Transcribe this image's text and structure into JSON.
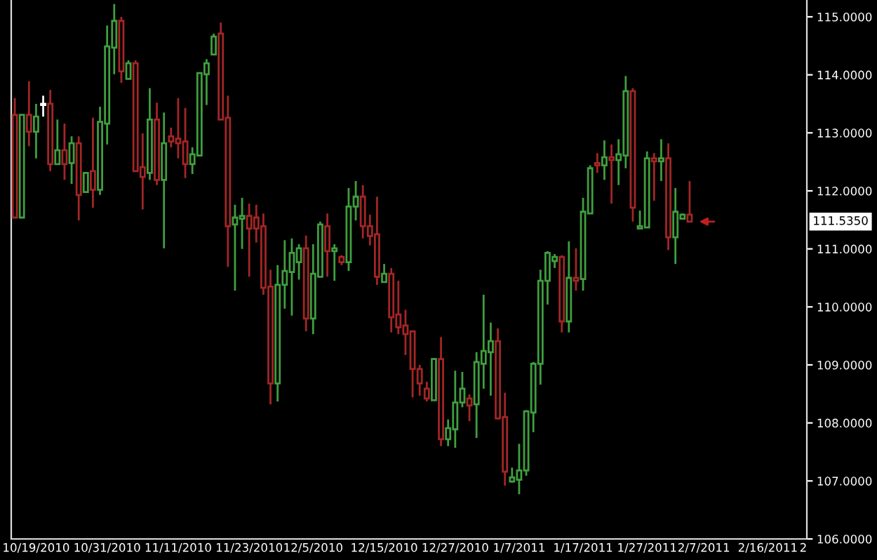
{
  "chart_data": {
    "type": "candlestick",
    "categories": [
      null,
      null,
      null,
      "10/19/2010",
      null,
      null,
      null,
      null,
      null,
      null,
      null,
      null,
      null,
      "10/31/2010",
      null,
      null,
      null,
      null,
      null,
      null,
      null,
      null,
      null,
      "11/11/2010",
      null,
      null,
      null,
      null,
      null,
      null,
      null,
      null,
      null,
      "11/23/2010",
      null,
      null,
      null,
      null,
      null,
      null,
      null,
      null,
      "12/5/2010",
      null,
      null,
      null,
      null,
      null,
      null,
      null,
      null,
      null,
      "12/15/2010",
      null,
      null,
      null,
      null,
      null,
      null,
      null,
      null,
      null,
      "12/27/2010",
      null,
      null,
      null,
      null,
      null,
      null,
      null,
      null,
      "1/7/2011",
      null,
      null,
      null,
      null,
      null,
      null,
      null,
      null,
      "1/17/2011",
      null,
      null,
      null,
      null,
      null,
      null,
      null,
      null,
      "1/27/2011",
      null,
      null,
      null,
      null,
      null,
      null,
      null,
      "2/7/2011",
      null,
      null,
      null,
      null,
      null,
      null,
      null,
      null,
      "2/16/2011",
      null,
      null,
      null,
      null,
      "2"
    ],
    "ohlc": [
      [
        113.31,
        113.6,
        111.54,
        111.54
      ],
      [
        111.54,
        113.31,
        111.54,
        113.31
      ],
      [
        113.31,
        113.89,
        112.77,
        113.02
      ],
      [
        113.02,
        113.5,
        112.56,
        113.28
      ],
      [
        113.48,
        113.64,
        113.28,
        113.48
      ],
      [
        113.5,
        113.74,
        112.34,
        112.46
      ],
      [
        112.46,
        113.23,
        112.46,
        112.7
      ],
      [
        112.7,
        113.16,
        112.19,
        112.46
      ],
      [
        112.48,
        112.94,
        112.12,
        112.82
      ],
      [
        112.82,
        112.94,
        111.49,
        111.93
      ],
      [
        111.98,
        112.31,
        111.98,
        112.31
      ],
      [
        112.34,
        113.26,
        111.71,
        112.02
      ],
      [
        112.02,
        113.45,
        111.93,
        113.19
      ],
      [
        113.16,
        114.85,
        112.8,
        114.49
      ],
      [
        114.47,
        115.22,
        114.01,
        114.93
      ],
      [
        114.93,
        115.0,
        113.86,
        114.06
      ],
      [
        113.93,
        114.25,
        113.93,
        114.2
      ],
      [
        114.2,
        114.25,
        112.34,
        112.34
      ],
      [
        112.41,
        112.99,
        111.68,
        112.24
      ],
      [
        112.31,
        113.77,
        112.19,
        113.23
      ],
      [
        113.23,
        113.52,
        112.1,
        112.19
      ],
      [
        112.19,
        113.35,
        111.01,
        112.82
      ],
      [
        112.94,
        113.09,
        112.75,
        112.85
      ],
      [
        112.9,
        113.6,
        112.56,
        112.82
      ],
      [
        112.85,
        113.43,
        112.22,
        112.46
      ],
      [
        112.46,
        112.75,
        112.29,
        112.63
      ],
      [
        112.61,
        114.03,
        112.61,
        114.03
      ],
      [
        114.01,
        114.27,
        113.48,
        114.2
      ],
      [
        114.35,
        114.71,
        114.35,
        114.66
      ],
      [
        114.71,
        114.9,
        113.23,
        113.23
      ],
      [
        113.26,
        113.64,
        110.69,
        111.39
      ],
      [
        111.42,
        111.76,
        110.28,
        111.54
      ],
      [
        111.52,
        111.88,
        111.0,
        111.57
      ],
      [
        111.57,
        111.78,
        110.52,
        111.35
      ],
      [
        111.54,
        111.76,
        111.11,
        111.35
      ],
      [
        111.39,
        111.61,
        110.21,
        110.33
      ],
      [
        110.35,
        110.64,
        108.32,
        108.68
      ],
      [
        108.68,
        110.72,
        108.37,
        110.38
      ],
      [
        110.38,
        111.15,
        109.97,
        110.62
      ],
      [
        110.6,
        111.18,
        109.85,
        110.93
      ],
      [
        110.77,
        111.08,
        110.47,
        111.01
      ],
      [
        111.01,
        111.23,
        109.58,
        109.8
      ],
      [
        109.8,
        111.08,
        109.53,
        110.57
      ],
      [
        110.52,
        111.47,
        110.52,
        111.42
      ],
      [
        111.39,
        111.61,
        110.52,
        110.96
      ],
      [
        110.96,
        111.08,
        110.45,
        111.01
      ],
      [
        110.86,
        110.89,
        110.72,
        110.77
      ],
      [
        110.77,
        112.05,
        110.62,
        111.73
      ],
      [
        111.73,
        112.17,
        111.49,
        111.9
      ],
      [
        111.9,
        112.1,
        111.18,
        111.39
      ],
      [
        111.39,
        111.59,
        111.06,
        111.22
      ],
      [
        111.25,
        111.9,
        110.38,
        110.52
      ],
      [
        110.43,
        110.74,
        110.43,
        110.57
      ],
      [
        110.57,
        110.67,
        109.56,
        109.82
      ],
      [
        109.87,
        110.45,
        109.53,
        109.65
      ],
      [
        109.68,
        109.95,
        109.17,
        109.53
      ],
      [
        109.58,
        109.58,
        108.44,
        108.93
      ],
      [
        108.93,
        109.0,
        108.47,
        108.68
      ],
      [
        108.59,
        108.71,
        108.37,
        108.42
      ],
      [
        108.39,
        109.12,
        108.39,
        109.1
      ],
      [
        109.1,
        109.48,
        107.6,
        107.72
      ],
      [
        107.72,
        108.06,
        107.6,
        107.91
      ],
      [
        107.89,
        108.9,
        107.57,
        108.35
      ],
      [
        108.35,
        108.88,
        108.27,
        108.59
      ],
      [
        108.42,
        108.49,
        108.03,
        108.3
      ],
      [
        108.32,
        109.22,
        107.74,
        109.05
      ],
      [
        109.02,
        110.21,
        108.59,
        109.24
      ],
      [
        109.22,
        109.73,
        108.47,
        109.41
      ],
      [
        109.41,
        109.63,
        108.06,
        108.08
      ],
      [
        108.1,
        108.52,
        106.92,
        107.16
      ],
      [
        106.99,
        107.23,
        106.97,
        107.06
      ],
      [
        107.02,
        107.64,
        106.77,
        107.18
      ],
      [
        107.18,
        108.22,
        107.09,
        108.2
      ],
      [
        108.18,
        109.05,
        107.84,
        109.02
      ],
      [
        109.02,
        110.64,
        108.66,
        110.45
      ],
      [
        110.45,
        110.96,
        110.04,
        110.93
      ],
      [
        110.79,
        110.91,
        110.67,
        110.86
      ],
      [
        110.86,
        110.89,
        109.56,
        109.75
      ],
      [
        109.75,
        111.13,
        109.56,
        110.5
      ],
      [
        110.5,
        111.01,
        110.28,
        110.45
      ],
      [
        110.48,
        111.88,
        110.28,
        111.64
      ],
      [
        111.61,
        112.44,
        111.61,
        112.39
      ],
      [
        112.48,
        112.65,
        112.31,
        112.44
      ],
      [
        112.44,
        112.87,
        112.19,
        112.58
      ],
      [
        112.58,
        112.8,
        111.78,
        112.53
      ],
      [
        112.53,
        112.89,
        112.1,
        112.63
      ],
      [
        112.61,
        113.98,
        112.39,
        113.72
      ],
      [
        113.72,
        113.77,
        111.47,
        111.71
      ],
      [
        111.35,
        111.66,
        111.35,
        111.39
      ],
      [
        111.37,
        112.68,
        111.37,
        112.56
      ],
      [
        112.56,
        112.65,
        111.83,
        112.51
      ],
      [
        112.51,
        112.89,
        112.17,
        112.56
      ],
      [
        112.56,
        112.82,
        110.98,
        111.2
      ],
      [
        111.2,
        112.05,
        110.74,
        111.64
      ],
      [
        111.52,
        111.61,
        111.52,
        111.59
      ],
      [
        111.59,
        112.17,
        111.47,
        111.47
      ],
      null,
      null,
      null,
      null,
      null,
      null,
      null,
      null,
      null,
      null,
      null,
      null,
      null,
      null,
      null,
      null
    ],
    "colors": [
      "#a32626",
      "#3f9f3f",
      "#a32626",
      "#3f9f3f",
      "#ffffff",
      "#a32626",
      "#3f9f3f",
      "#a32626",
      "#3f9f3f",
      "#a32626",
      "#3f9f3f",
      "#a32626",
      "#3f9f3f",
      "#3f9f3f",
      "#3f9f3f",
      "#a32626",
      "#3f9f3f",
      "#a32626",
      "#a32626",
      "#3f9f3f",
      "#a32626",
      "#3f9f3f",
      "#a32626",
      "#a32626",
      "#a32626",
      "#3f9f3f",
      "#3f9f3f",
      "#3f9f3f",
      "#3f9f3f",
      "#a32626",
      "#a32626",
      "#3f9f3f",
      "#3f9f3f",
      "#a32626",
      "#a32626",
      "#a32626",
      "#a32626",
      "#3f9f3f",
      "#3f9f3f",
      "#3f9f3f",
      "#3f9f3f",
      "#a32626",
      "#3f9f3f",
      "#3f9f3f",
      "#a32626",
      "#3f9f3f",
      "#a32626",
      "#3f9f3f",
      "#3f9f3f",
      "#a32626",
      "#a32626",
      "#a32626",
      "#3f9f3f",
      "#a32626",
      "#a32626",
      "#a32626",
      "#a32626",
      "#a32626",
      "#a32626",
      "#3f9f3f",
      "#a32626",
      "#3f9f3f",
      "#3f9f3f",
      "#3f9f3f",
      "#a32626",
      "#3f9f3f",
      "#3f9f3f",
      "#3f9f3f",
      "#a32626",
      "#a32626",
      "#3f9f3f",
      "#3f9f3f",
      "#3f9f3f",
      "#3f9f3f",
      "#3f9f3f",
      "#3f9f3f",
      "#3f9f3f",
      "#a32626",
      "#3f9f3f",
      "#a32626",
      "#3f9f3f",
      "#3f9f3f",
      "#a32626",
      "#3f9f3f",
      "#a32626",
      "#3f9f3f",
      "#3f9f3f",
      "#a32626",
      "#3f9f3f",
      "#3f9f3f",
      "#a32626",
      "#3f9f3f",
      "#a32626",
      "#3f9f3f",
      "#3f9f3f",
      "#a32626",
      null,
      null,
      null,
      null,
      null,
      null,
      null,
      null,
      null,
      null,
      null,
      null,
      null,
      null,
      null,
      null
    ],
    "ylim": [
      106,
      115.29
    ],
    "yticks": [
      {
        "value": 106,
        "label": "106.0000"
      },
      {
        "value": 107,
        "label": "107.0000"
      },
      {
        "value": 108,
        "label": "108.0000"
      },
      {
        "value": 109,
        "label": "109.0000"
      },
      {
        "value": 110,
        "label": "110.0000"
      },
      {
        "value": 111,
        "label": "111.0000"
      },
      {
        "value": 112,
        "label": "112.0000"
      },
      {
        "value": 113,
        "label": "113.0000"
      },
      {
        "value": 114,
        "label": "114.0000"
      },
      {
        "value": 115,
        "label": "115.0000"
      }
    ],
    "annotations": [
      "111.5350"
    ],
    "grid": false
  }
}
